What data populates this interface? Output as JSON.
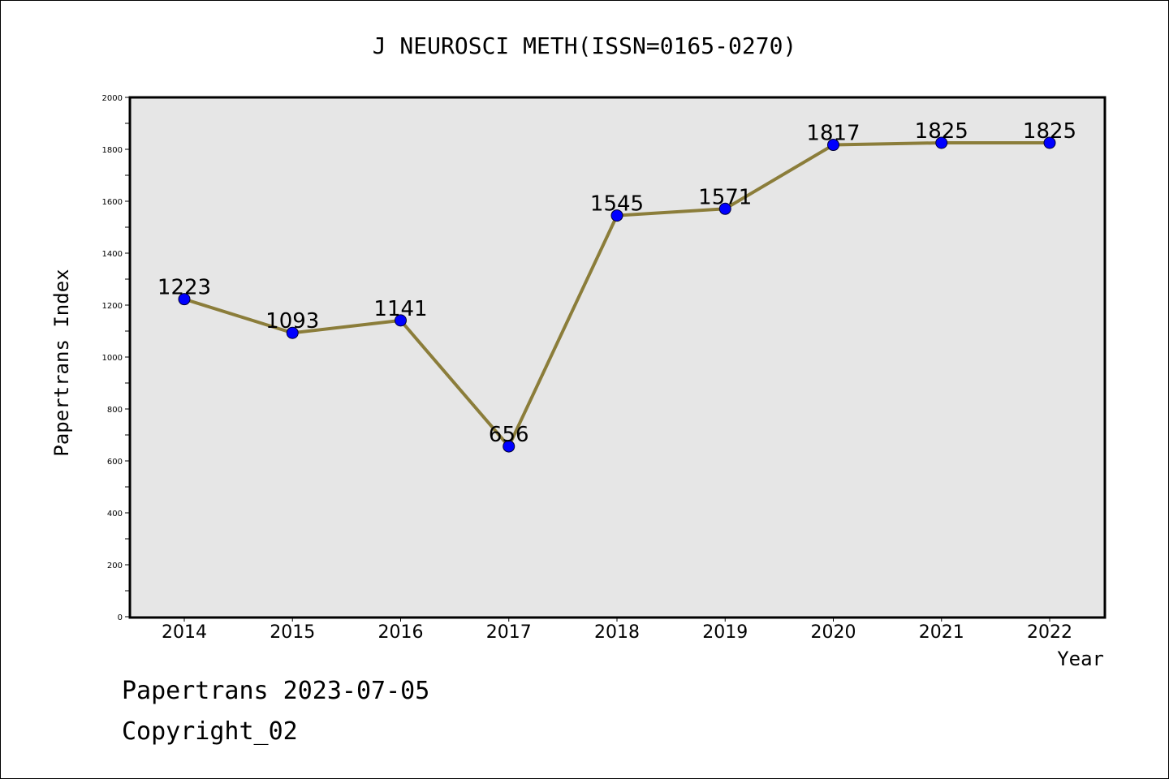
{
  "chart_data": {
    "type": "line",
    "title": "J NEUROSCI METH(ISSN=0165-0270)",
    "xlabel": "Year",
    "ylabel": "Papertrans Index",
    "categories": [
      "2014",
      "2015",
      "2016",
      "2017",
      "2018",
      "2019",
      "2020",
      "2021",
      "2022"
    ],
    "values": [
      1223,
      1093,
      1141,
      656,
      1545,
      1571,
      1817,
      1825,
      1825
    ],
    "data_labels": [
      "1223",
      "1093",
      "1141",
      "656",
      "1545",
      "1571",
      "1817",
      "1825",
      "1825"
    ],
    "ylim": [
      0,
      2000
    ],
    "yticks": [
      "0",
      "200",
      "400",
      "600",
      "800",
      "1000",
      "1200",
      "1400",
      "1600",
      "1800",
      "2000"
    ],
    "grid": false,
    "plot_background": "#e6e6e6",
    "line_color": "#8b7d3a",
    "marker_color": "#0000ff"
  },
  "footer": {
    "line1": "Papertrans 2023-07-05",
    "line2": "Copyright_02"
  }
}
